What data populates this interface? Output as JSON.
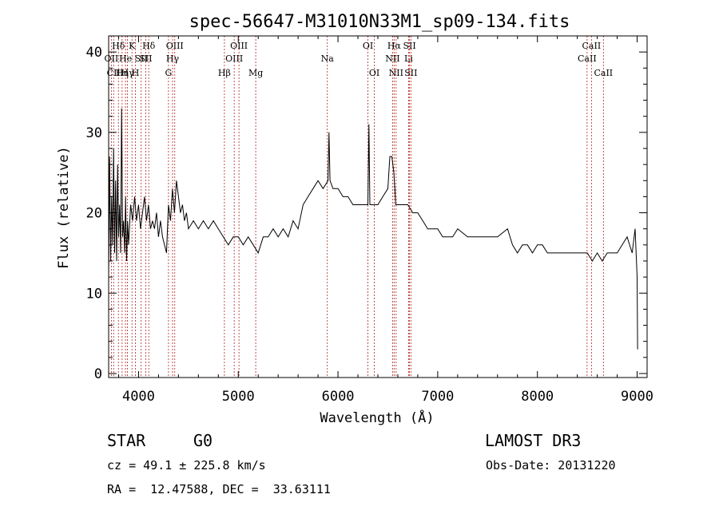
{
  "chart_data": {
    "type": "line",
    "title": "spec-56647-M31010N33M1_sp09-134.fits",
    "xlabel": "Wavelength (Å)",
    "ylabel": "Flux (relative)",
    "xlim": [
      3700,
      9100
    ],
    "ylim": [
      -0.5,
      42
    ],
    "x_ticks": [
      4000,
      5000,
      6000,
      7000,
      8000,
      9000
    ],
    "y_ticks": [
      0,
      10,
      20,
      30,
      40
    ],
    "grid": false,
    "line_color": "#000000",
    "marker_color": "#b22222",
    "series": [
      {
        "values": [
          [
            3700,
            12
          ],
          [
            3710,
            27
          ],
          [
            3720,
            14
          ],
          [
            3730,
            22
          ],
          [
            3740,
            16
          ],
          [
            3750,
            28
          ],
          [
            3760,
            15
          ],
          [
            3770,
            24
          ],
          [
            3780,
            14
          ],
          [
            3790,
            26
          ],
          [
            3800,
            17
          ],
          [
            3810,
            21
          ],
          [
            3820,
            15
          ],
          [
            3830,
            33
          ],
          [
            3840,
            17
          ],
          [
            3850,
            19
          ],
          [
            3860,
            15
          ],
          [
            3870,
            22
          ],
          [
            3880,
            14
          ],
          [
            3890,
            19
          ],
          [
            3900,
            16
          ],
          [
            3920,
            21
          ],
          [
            3940,
            19
          ],
          [
            3960,
            22
          ],
          [
            3980,
            19
          ],
          [
            4000,
            21
          ],
          [
            4020,
            18
          ],
          [
            4040,
            20
          ],
          [
            4060,
            22
          ],
          [
            4080,
            19
          ],
          [
            4100,
            21
          ],
          [
            4120,
            18
          ],
          [
            4140,
            19
          ],
          [
            4160,
            18
          ],
          [
            4180,
            20
          ],
          [
            4200,
            17
          ],
          [
            4220,
            19
          ],
          [
            4240,
            17
          ],
          [
            4260,
            16
          ],
          [
            4280,
            15
          ],
          [
            4300,
            21
          ],
          [
            4320,
            19
          ],
          [
            4340,
            23
          ],
          [
            4360,
            20
          ],
          [
            4380,
            24
          ],
          [
            4400,
            22
          ],
          [
            4420,
            20
          ],
          [
            4440,
            21
          ],
          [
            4460,
            19
          ],
          [
            4480,
            20
          ],
          [
            4500,
            18
          ],
          [
            4550,
            19
          ],
          [
            4600,
            18
          ],
          [
            4650,
            19
          ],
          [
            4700,
            18
          ],
          [
            4750,
            19
          ],
          [
            4800,
            18
          ],
          [
            4850,
            17
          ],
          [
            4900,
            16
          ],
          [
            4950,
            17
          ],
          [
            5000,
            17
          ],
          [
            5050,
            16
          ],
          [
            5100,
            17
          ],
          [
            5150,
            16
          ],
          [
            5200,
            15
          ],
          [
            5250,
            17
          ],
          [
            5300,
            17
          ],
          [
            5350,
            18
          ],
          [
            5400,
            17
          ],
          [
            5450,
            18
          ],
          [
            5500,
            17
          ],
          [
            5550,
            19
          ],
          [
            5600,
            18
          ],
          [
            5650,
            21
          ],
          [
            5700,
            22
          ],
          [
            5750,
            23
          ],
          [
            5800,
            24
          ],
          [
            5850,
            23
          ],
          [
            5900,
            24
          ],
          [
            5910,
            30
          ],
          [
            5920,
            24
          ],
          [
            5950,
            23
          ],
          [
            6000,
            23
          ],
          [
            6050,
            22
          ],
          [
            6100,
            22
          ],
          [
            6150,
            21
          ],
          [
            6200,
            21
          ],
          [
            6250,
            21
          ],
          [
            6300,
            21
          ],
          [
            6310,
            31
          ],
          [
            6320,
            21
          ],
          [
            6350,
            21
          ],
          [
            6400,
            21
          ],
          [
            6450,
            22
          ],
          [
            6500,
            23
          ],
          [
            6520,
            27
          ],
          [
            6540,
            27
          ],
          [
            6560,
            25
          ],
          [
            6580,
            21
          ],
          [
            6600,
            21
          ],
          [
            6650,
            21
          ],
          [
            6700,
            21
          ],
          [
            6750,
            20
          ],
          [
            6800,
            20
          ],
          [
            6850,
            19
          ],
          [
            6900,
            18
          ],
          [
            6950,
            18
          ],
          [
            7000,
            18
          ],
          [
            7050,
            17
          ],
          [
            7100,
            17
          ],
          [
            7150,
            17
          ],
          [
            7200,
            18
          ],
          [
            7300,
            17
          ],
          [
            7400,
            17
          ],
          [
            7500,
            17
          ],
          [
            7600,
            17
          ],
          [
            7700,
            18
          ],
          [
            7750,
            16
          ],
          [
            7800,
            15
          ],
          [
            7850,
            16
          ],
          [
            7900,
            16
          ],
          [
            7950,
            15
          ],
          [
            8000,
            16
          ],
          [
            8050,
            16
          ],
          [
            8100,
            15
          ],
          [
            8150,
            15
          ],
          [
            8200,
            15
          ],
          [
            8250,
            15
          ],
          [
            8300,
            15
          ],
          [
            8350,
            15
          ],
          [
            8400,
            15
          ],
          [
            8450,
            15
          ],
          [
            8500,
            15
          ],
          [
            8550,
            14
          ],
          [
            8600,
            15
          ],
          [
            8650,
            14
          ],
          [
            8700,
            15
          ],
          [
            8750,
            15
          ],
          [
            8800,
            15
          ],
          [
            8850,
            16
          ],
          [
            8900,
            17
          ],
          [
            8950,
            15
          ],
          [
            8980,
            18
          ],
          [
            9000,
            12
          ],
          [
            9005,
            3
          ]
        ]
      }
    ],
    "markers": [
      {
        "x": 3727,
        "label": "OII",
        "row": 1
      },
      {
        "x": 3750,
        "label": "CII",
        "row": 2
      },
      {
        "x": 3798,
        "label": "Hδ",
        "row": 0
      },
      {
        "x": 3835,
        "label": "Hη",
        "row": 2
      },
      {
        "x": 3869,
        "label": "He",
        "row": 1
      },
      {
        "x": 3889,
        "label": "Hγ",
        "row": 2
      },
      {
        "x": 3934,
        "label": "K",
        "row": 0
      },
      {
        "x": 3969,
        "label": "H",
        "row": 2
      },
      {
        "x": 4026,
        "label": "SII",
        "row": 1
      },
      {
        "x": 4072,
        "label": "SII",
        "row": 1
      },
      {
        "x": 4102,
        "label": "Hδ",
        "row": 0
      },
      {
        "x": 4300,
        "label": "G",
        "row": 2
      },
      {
        "x": 4341,
        "label": "Hγ",
        "row": 1
      },
      {
        "x": 4363,
        "label": "OIII",
        "row": 0
      },
      {
        "x": 4861,
        "label": "Hβ",
        "row": 2
      },
      {
        "x": 4959,
        "label": "OIII",
        "row": 1
      },
      {
        "x": 5007,
        "label": "OIII",
        "row": 0
      },
      {
        "x": 5175,
        "label": "Mg",
        "row": 2
      },
      {
        "x": 5893,
        "label": "Na",
        "row": 1
      },
      {
        "x": 6300,
        "label": "OI",
        "row": 0
      },
      {
        "x": 6364,
        "label": "OI",
        "row": 2
      },
      {
        "x": 6548,
        "label": "NII",
        "row": 1
      },
      {
        "x": 6563,
        "label": "Hα",
        "row": 0
      },
      {
        "x": 6583,
        "label": "NII",
        "row": 2
      },
      {
        "x": 6708,
        "label": "Li",
        "row": 1
      },
      {
        "x": 6717,
        "label": "SII",
        "row": 0
      },
      {
        "x": 6731,
        "label": "SII",
        "row": 2
      },
      {
        "x": 8498,
        "label": "CaII",
        "row": 1
      },
      {
        "x": 8542,
        "label": "CaII",
        "row": 0
      },
      {
        "x": 8662,
        "label": "CaII",
        "row": 2
      }
    ]
  },
  "info": {
    "object_class": "STAR",
    "subclass": "G0",
    "survey": "LAMOST DR3",
    "redshift": "cz = 49.1 ± 225.8 km/s",
    "obs_date": "Obs-Date: 20131220",
    "coords": "RA =  12.47588, DEC =  33.63111"
  }
}
